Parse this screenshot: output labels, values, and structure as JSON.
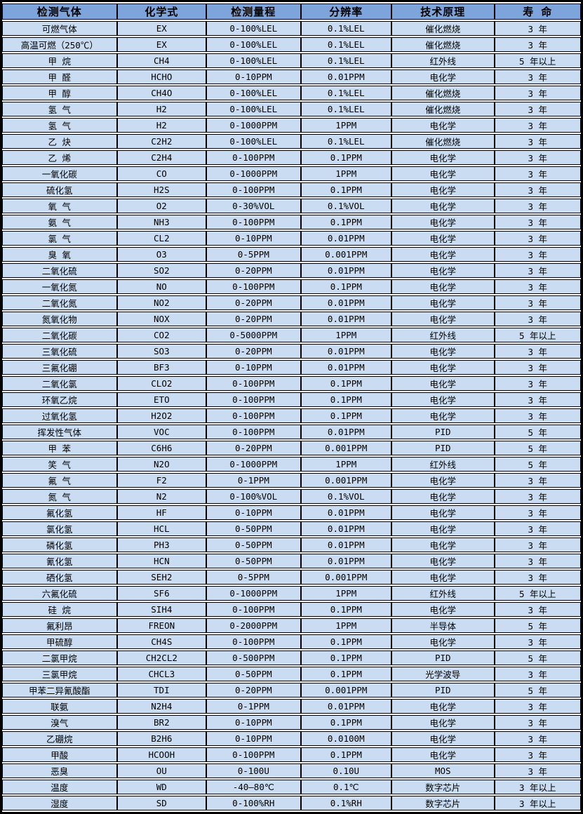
{
  "colors": {
    "header_bg": "#7EA4DC",
    "row_bg": "#C9DCF1",
    "border": "#000000",
    "gap": "#FFFFFF",
    "text": "#000000"
  },
  "table": {
    "columns": [
      "检测气体",
      "化学式",
      "检测量程",
      "分辨率",
      "技术原理",
      "寿 命"
    ],
    "rows": [
      [
        "可燃气体",
        "EX",
        "0-100%LEL",
        "0.1%LEL",
        "催化燃烧",
        "3 年"
      ],
      [
        "高温可燃（250℃）",
        "EX",
        "0-100%LEL",
        "0.1%LEL",
        "催化燃烧",
        "3 年"
      ],
      [
        "甲 烷",
        "CH4",
        "0-100%LEL",
        "0.1%LEL",
        "红外线",
        "5 年以上"
      ],
      [
        "甲 醛",
        "HCHO",
        "0-10PPM",
        "0.01PPM",
        "电化学",
        "3 年"
      ],
      [
        "甲 醇",
        "CH4O",
        "0-100%LEL",
        "0.1%LEL",
        "催化燃烧",
        "3 年"
      ],
      [
        "氢 气",
        "H2",
        "0-100%LEL",
        "0.1%LEL",
        "催化燃烧",
        "3 年"
      ],
      [
        "氢 气",
        "H2",
        "0-1000PPM",
        "1PPM",
        "电化学",
        "3 年"
      ],
      [
        "乙 炔",
        "C2H2",
        "0-100%LEL",
        "0.1%LEL",
        "催化燃烧",
        "3 年"
      ],
      [
        "乙 烯",
        "C2H4",
        "0-100PPM",
        "0.1PPM",
        "电化学",
        "3 年"
      ],
      [
        "一氧化碳",
        "CO",
        "0-1000PPM",
        "1PPM",
        "电化学",
        "3 年"
      ],
      [
        "硫化氢",
        "H2S",
        "0-100PPM",
        "0.1PPM",
        "电化学",
        "3 年"
      ],
      [
        "氧 气",
        "O2",
        "0-30%VOL",
        "0.1%VOL",
        "电化学",
        "3 年"
      ],
      [
        "氨 气",
        "NH3",
        "0-100PPM",
        "0.1PPM",
        "电化学",
        "3 年"
      ],
      [
        "氯 气",
        "CL2",
        "0-10PPM",
        "0.01PPM",
        "电化学",
        "3 年"
      ],
      [
        "臭 氧",
        "O3",
        "0-5PPM",
        "0.001PPM",
        "电化学",
        "3 年"
      ],
      [
        "二氧化硫",
        "SO2",
        "0-20PPM",
        "0.01PPM",
        "电化学",
        "3 年"
      ],
      [
        "一氧化氮",
        "NO",
        "0-100PPM",
        "0.1PPM",
        "电化学",
        "3 年"
      ],
      [
        "二氧化氮",
        "NO2",
        "0-20PPM",
        "0.01PPM",
        "电化学",
        "3 年"
      ],
      [
        "氮氧化物",
        "NOX",
        "0-20PPM",
        "0.01PPM",
        "电化学",
        "3 年"
      ],
      [
        "二氧化碳",
        "CO2",
        "0-5000PPM",
        "1PPM",
        "红外线",
        "5 年以上"
      ],
      [
        "三氧化硫",
        "SO3",
        "0-20PPM",
        "0.01PPM",
        "电化学",
        "3 年"
      ],
      [
        "三氟化硼",
        "BF3",
        "0-10PPM",
        "0.01PPM",
        "电化学",
        "3 年"
      ],
      [
        "二氧化氯",
        "CLO2",
        "0-100PPM",
        "0.1PPM",
        "电化学",
        "3 年"
      ],
      [
        "环氧乙烷",
        "ETO",
        "0-100PPM",
        "0.1PPM",
        "电化学",
        "3 年"
      ],
      [
        "过氧化氢",
        "H2O2",
        "0-100PPM",
        "0.1PPM",
        "电化学",
        "3 年"
      ],
      [
        "挥发性气体",
        "VOC",
        "0-100PPM",
        "0.01PPM",
        "PID",
        "5 年"
      ],
      [
        "甲 苯",
        "C6H6",
        "0-20PPM",
        "0.001PPM",
        "PID",
        "5 年"
      ],
      [
        "笑 气",
        "N2O",
        "0-1000PPM",
        "1PPM",
        "红外线",
        "5 年"
      ],
      [
        "氟 气",
        "F2",
        "0-1PPM",
        "0.001PPM",
        "电化学",
        "3 年"
      ],
      [
        "氮 气",
        "N2",
        "0-100%VOL",
        "0.1%VOL",
        "电化学",
        "3 年"
      ],
      [
        "氟化氢",
        "HF",
        "0-10PPM",
        "0.01PPM",
        "电化学",
        "3 年"
      ],
      [
        "氯化氢",
        "HCL",
        "0-50PPM",
        "0.01PPM",
        "电化学",
        "3 年"
      ],
      [
        "磷化氢",
        "PH3",
        "0-50PPM",
        "0.01PPM",
        "电化学",
        "3 年"
      ],
      [
        "氰化氢",
        "HCN",
        "0-50PPM",
        "0.01PPM",
        "电化学",
        "3 年"
      ],
      [
        "硒化氢",
        "SEH2",
        "0-5PPM",
        "0.001PPM",
        "电化学",
        "3 年"
      ],
      [
        "六氟化硫",
        "SF6",
        "0-1000PPM",
        "1PPM",
        "红外线",
        "5 年以上"
      ],
      [
        "硅 烷",
        "SIH4",
        "0-100PPM",
        "0.1PPM",
        "电化学",
        "3 年"
      ],
      [
        "氟利昂",
        "FREON",
        "0-2000PPM",
        "1PPM",
        "半导体",
        "5 年"
      ],
      [
        "甲硫醇",
        "CH4S",
        "0-100PPM",
        "0.1PPM",
        "电化学",
        "3 年"
      ],
      [
        "二氯甲烷",
        "CH2CL2",
        "0-500PPM",
        "0.1PPM",
        "PID",
        "5 年"
      ],
      [
        "三氯甲烷",
        "CHCL3",
        "0-50PPM",
        "0.1PPM",
        "光学波导",
        "3 年"
      ],
      [
        "甲苯二异氰酸酯",
        "TDI",
        "0-20PPM",
        "0.001PPM",
        "PID",
        "5 年"
      ],
      [
        "联氨",
        "N2H4",
        "0-1PPM",
        "0.01PPM",
        "电化学",
        "3 年"
      ],
      [
        "溴气",
        "BR2",
        "0-10PPM",
        "0.1PPM",
        "电化学",
        "3 年"
      ],
      [
        "乙硼烷",
        "B2H6",
        "0-10PPM",
        "0.0100M",
        "电化学",
        "3 年"
      ],
      [
        "甲酸",
        "HCOOH",
        "0-100PPM",
        "0.1PPM",
        "电化学",
        "3 年"
      ],
      [
        "恶臭",
        "OU",
        "0-100U",
        "0.10U",
        "MOS",
        "3 年"
      ],
      [
        "温度",
        "WD",
        "-40—80℃",
        "0.1℃",
        "数字芯片",
        "3 年以上"
      ],
      [
        "湿度",
        "SD",
        "0-100%RH",
        "0.1%RH",
        "数字芯片",
        "3 年以上"
      ]
    ]
  }
}
